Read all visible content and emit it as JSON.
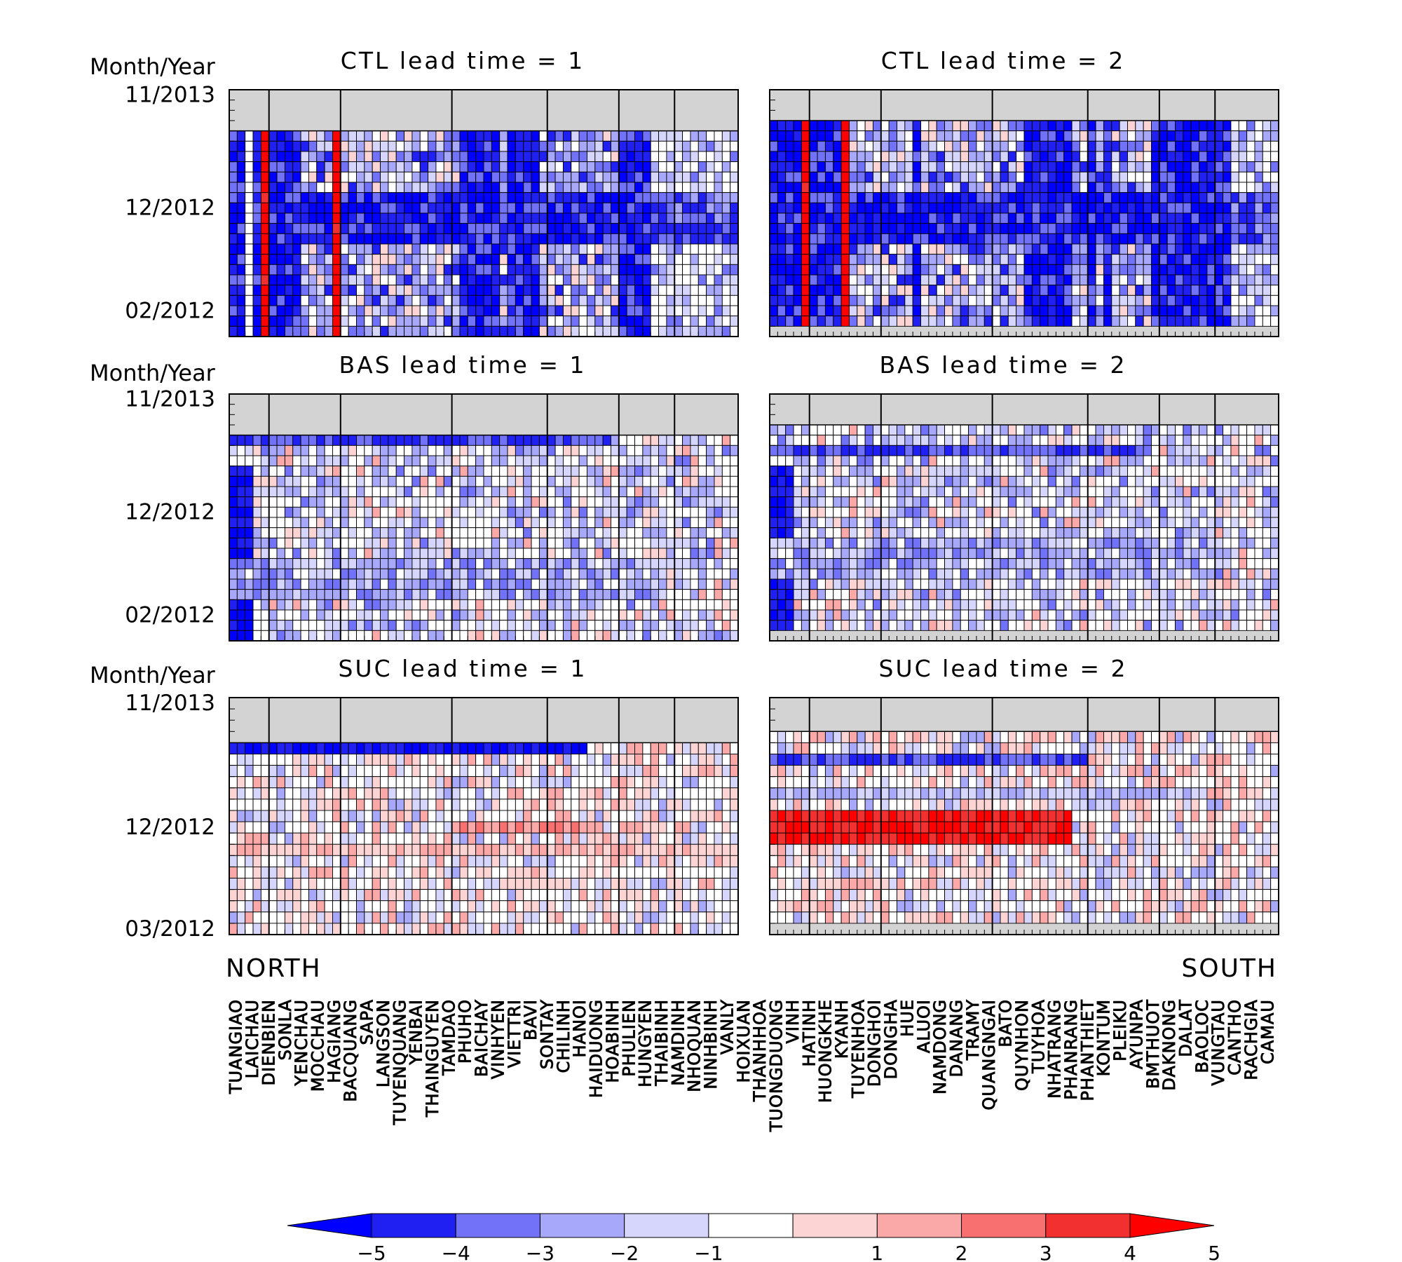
{
  "chart_data": {
    "type": "heatmap",
    "row_axis_label": "Month/Year",
    "stations": [
      "TUANGIAO",
      "LAICHAU",
      "DIENBIEN",
      "SONLA",
      "YENCHAU",
      "MOCCHAU",
      "HAGIANG",
      "BACQUANG",
      "SAPA",
      "LANGSON",
      "TUYENQUANG",
      "YENBAI",
      "THAINGUYEN",
      "TAMDAO",
      "PHUHO",
      "BAICHAY",
      "VINHYEN",
      "VIETTRI",
      "BAVI",
      "SONTAY",
      "CHILINH",
      "HANOI",
      "HAIDUONG",
      "HOABINH",
      "PHULIEN",
      "HUNGYEN",
      "THAIBINH",
      "NAMDINH",
      "NHOQUAN",
      "NINHBINH",
      "VANLY",
      "HOIXUAN",
      "THANHHOA",
      "TUONGDUONG",
      "VINH",
      "HATINH",
      "HUONGKHE",
      "KYANH",
      "TUYENHOA",
      "DONGHOI",
      "DONGHA",
      "HUE",
      "ALUOI",
      "NAMDONG",
      "DANANG",
      "TRAMY",
      "QUANGNGAI",
      "BATO",
      "QUYNHON",
      "TUYHOA",
      "NHATRANG",
      "PHANRANG",
      "PHANTHIET",
      "KONTUM",
      "PLEIKU",
      "AYUNPA",
      "BMTHUOT",
      "DAKNONG",
      "DALAT",
      "BAOLOC",
      "VUNGTAU",
      "CANTHO",
      "RACHGIA",
      "CAMAU"
    ],
    "region_labels": {
      "north": "NORTH",
      "south": "SOUTH"
    },
    "region_group_sizes": [
      3,
      5,
      8,
      7,
      4,
      4,
      2
    ],
    "colorbar": {
      "levels": [
        "-5",
        "-4",
        "-3",
        "-2",
        "-1",
        "1",
        "2",
        "3",
        "4",
        "5"
      ],
      "colors": [
        "#0000ff",
        "#2020f2",
        "#7272f8",
        "#a8a8fa",
        "#d6d6fc",
        "#ffffff",
        "#fcd4d4",
        "#faa8a8",
        "#f87070",
        "#f23030",
        "#ff0000"
      ],
      "extend": "both"
    },
    "panels": [
      {
        "title": "CTL lead time = 1",
        "scheme": "ctl1",
        "rows": 24,
        "missing_top": 4,
        "missing_bottom": 0,
        "y_ticks": [
          {
            "label": "11/2013",
            "index": 0
          },
          {
            "label": "12/2012",
            "index": 11
          },
          {
            "label": "02/2012",
            "index": 21
          }
        ]
      },
      {
        "title": "CTL lead time = 2",
        "scheme": "ctl2",
        "rows": 24,
        "missing_top": 3,
        "missing_bottom": 1,
        "y_ticks": []
      },
      {
        "title": "BAS lead time = 1",
        "scheme": "bas1",
        "rows": 24,
        "missing_top": 4,
        "missing_bottom": 0,
        "y_ticks": [
          {
            "label": "11/2013",
            "index": 0
          },
          {
            "label": "12/2012",
            "index": 11
          },
          {
            "label": "02/2012",
            "index": 21
          }
        ]
      },
      {
        "title": "BAS lead time = 2",
        "scheme": "bas2",
        "rows": 24,
        "missing_top": 3,
        "missing_bottom": 1,
        "y_ticks": []
      },
      {
        "title": "SUC lead time = 1",
        "scheme": "suc1",
        "rows": 21,
        "missing_top": 4,
        "missing_bottom": 0,
        "y_ticks": [
          {
            "label": "11/2013",
            "index": 0
          },
          {
            "label": "12/2012",
            "index": 11
          },
          {
            "label": "03/2012",
            "index": 20
          }
        ]
      },
      {
        "title": "SUC lead time = 2",
        "scheme": "suc2",
        "rows": 21,
        "missing_top": 3,
        "missing_bottom": 1,
        "y_ticks": []
      }
    ]
  }
}
